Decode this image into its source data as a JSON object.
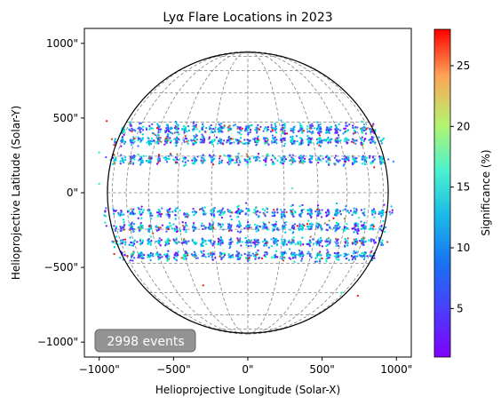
{
  "chart_data": {
    "type": "scatter",
    "title": "Lyα Flare Locations in 2023",
    "xlabel": "Helioprojective Longitude (Solar-X)",
    "ylabel": "Helioprojective Latitude (Solar-Y)",
    "xlim": [
      -1100,
      1100
    ],
    "ylim": [
      -1100,
      1100
    ],
    "x_ticks": [
      -1000,
      -500,
      0,
      500,
      1000
    ],
    "x_tick_labels": [
      "−1000\"",
      "−500\"",
      "0\"",
      "500\"",
      "1000\""
    ],
    "y_ticks": [
      1000,
      500,
      0,
      -500,
      -1000
    ],
    "y_tick_labels": [
      "1000\"",
      "500\"",
      "0\"",
      "−500\"",
      "−1000\""
    ],
    "solar_radius": 945,
    "event_count_label": "2998 events",
    "event_count": 2998,
    "bands": [
      {
        "y": 425,
        "spread": 55,
        "frac": 0.15
      },
      {
        "y": 345,
        "spread": 40,
        "frac": 0.15
      },
      {
        "y": 220,
        "spread": 45,
        "frac": 0.14
      },
      {
        "y": -130,
        "spread": 55,
        "frac": 0.14
      },
      {
        "y": -230,
        "spread": 45,
        "frac": 0.14
      },
      {
        "y": -330,
        "spread": 40,
        "frac": 0.14
      },
      {
        "y": -420,
        "spread": 45,
        "frac": 0.14
      }
    ],
    "sample_points": [
      {
        "x": -950,
        "y": 480,
        "significance": 27
      },
      {
        "x": -900,
        "y": 320,
        "significance": 27
      },
      {
        "x": -780,
        "y": 410,
        "significance": 26
      },
      {
        "x": -520,
        "y": 260,
        "significance": 27
      },
      {
        "x": -1000,
        "y": 270,
        "significance": 14
      },
      {
        "x": -1000,
        "y": 60,
        "significance": 16
      },
      {
        "x": -960,
        "y": -200,
        "significance": 12
      },
      {
        "x": -900,
        "y": -410,
        "significance": 27
      },
      {
        "x": -420,
        "y": 380,
        "significance": 25
      },
      {
        "x": 420,
        "y": 430,
        "significance": 24
      },
      {
        "x": 800,
        "y": 430,
        "significance": 27
      },
      {
        "x": 850,
        "y": 170,
        "significance": 27
      },
      {
        "x": 900,
        "y": 230,
        "significance": 13
      },
      {
        "x": 930,
        "y": -130,
        "significance": 27
      },
      {
        "x": 940,
        "y": -330,
        "significance": 26
      },
      {
        "x": 740,
        "y": -690,
        "significance": 27
      },
      {
        "x": 630,
        "y": -670,
        "significance": 12
      },
      {
        "x": -300,
        "y": -620,
        "significance": 26
      },
      {
        "x": 500,
        "y": -440,
        "significance": 27
      },
      {
        "x": 300,
        "y": 30,
        "significance": 18
      }
    ],
    "colorbar": {
      "label": "Significance (%)",
      "colormap": "rainbow",
      "min": 1,
      "max": 28,
      "ticks": [
        5,
        10,
        15,
        20,
        25
      ],
      "tick_labels": [
        "5",
        "10",
        "15",
        "20",
        "25"
      ]
    },
    "grid": true,
    "grid_color": "#808080",
    "point_color_scale_stops": [
      "#8000ff",
      "#2060ff",
      "#00c0ff",
      "#40ffc0",
      "#a0ff60",
      "#ffd040",
      "#ff8000",
      "#ff0000"
    ]
  }
}
